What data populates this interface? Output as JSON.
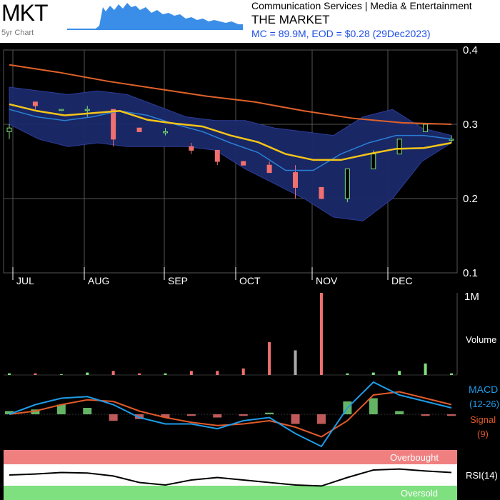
{
  "header": {
    "ticker": "MKT",
    "chart_period": "5yr Chart",
    "sector": "Communication Services | Media & Entertainment",
    "company": "THE MARKET",
    "market_cap_line": "MC = 89.9M, EOD = $0.28 (29Dec2023)"
  },
  "colors": {
    "background": "#000000",
    "band_fill": "#1b2a6b",
    "sma_short": "#f5c518",
    "sma_long": "#e0622a",
    "ma_mid": "#2a7fd4",
    "up": "#7ee07e",
    "down": "#f07070",
    "macd": "#1e9ce8",
    "signal": "#e05a2a",
    "overbought": "#f08080",
    "oversold": "#7ee07e"
  },
  "chart_data": {
    "type": "candlestick",
    "x_ticks": [
      "JUL",
      "AUG",
      "SEP",
      "OCT",
      "NOV",
      "DEC"
    ],
    "y_ticks": [
      "0.4",
      "0.3",
      "0.2",
      "0.1"
    ],
    "ylim": [
      0.1,
      0.4
    ],
    "candles": [
      {
        "o": 0.29,
        "h": 0.3,
        "l": 0.28,
        "c": 0.295
      },
      {
        "o": 0.33,
        "h": 0.33,
        "l": 0.32,
        "c": 0.325
      },
      {
        "o": 0.32,
        "h": 0.32,
        "l": 0.32,
        "c": 0.32
      },
      {
        "o": 0.32,
        "h": 0.325,
        "l": 0.31,
        "c": 0.32
      },
      {
        "o": 0.32,
        "h": 0.32,
        "l": 0.27,
        "c": 0.28
      },
      {
        "o": 0.295,
        "h": 0.295,
        "l": 0.29,
        "c": 0.29
      },
      {
        "o": 0.29,
        "h": 0.295,
        "l": 0.285,
        "c": 0.29
      },
      {
        "o": 0.27,
        "h": 0.275,
        "l": 0.26,
        "c": 0.265
      },
      {
        "o": 0.265,
        "h": 0.265,
        "l": 0.245,
        "c": 0.25
      },
      {
        "o": 0.25,
        "h": 0.25,
        "l": 0.245,
        "c": 0.245
      },
      {
        "o": 0.245,
        "h": 0.25,
        "l": 0.235,
        "c": 0.235
      },
      {
        "o": 0.235,
        "h": 0.245,
        "l": 0.2,
        "c": 0.215
      },
      {
        "o": 0.215,
        "h": 0.215,
        "l": 0.2,
        "c": 0.2
      },
      {
        "o": 0.2,
        "h": 0.24,
        "l": 0.195,
        "c": 0.24
      },
      {
        "o": 0.24,
        "h": 0.265,
        "l": 0.24,
        "c": 0.26
      },
      {
        "o": 0.26,
        "h": 0.28,
        "l": 0.26,
        "c": 0.28
      },
      {
        "o": 0.29,
        "h": 0.3,
        "l": 0.29,
        "c": 0.3
      },
      {
        "o": 0.28,
        "h": 0.285,
        "l": 0.275,
        "c": 0.28
      }
    ],
    "sma_short": [
      0.327,
      0.318,
      0.312,
      0.315,
      0.318,
      0.306,
      0.301,
      0.297,
      0.285,
      0.276,
      0.26,
      0.252,
      0.252,
      0.26,
      0.267,
      0.268,
      0.275
    ],
    "sma_long": [
      0.38,
      0.37,
      0.358,
      0.348,
      0.338,
      0.33,
      0.318,
      0.308,
      0.302,
      0.3
    ],
    "ma_mid": [
      0.32,
      0.31,
      0.305,
      0.31,
      0.318,
      0.312,
      0.3,
      0.29,
      0.275,
      0.262,
      0.238,
      0.238,
      0.26,
      0.275,
      0.285,
      0.285,
      0.28
    ],
    "band_upper": [
      0.35,
      0.345,
      0.34,
      0.345,
      0.34,
      0.325,
      0.31,
      0.305,
      0.305,
      0.295,
      0.29,
      0.285,
      0.31,
      0.32,
      0.295,
      0.285
    ],
    "band_lower": [
      0.3,
      0.28,
      0.27,
      0.275,
      0.27,
      0.27,
      0.27,
      0.265,
      0.24,
      0.22,
      0.2,
      0.175,
      0.17,
      0.2,
      0.25,
      0.275
    ],
    "volume_label": "Volume",
    "volume_tick": "1M",
    "volume": [
      0.02,
      0.02,
      0.01,
      0.03,
      0.05,
      0.02,
      0.02,
      0.05,
      0.05,
      0.08,
      0.4,
      0.3,
      1.0,
      0.02,
      0.03,
      0.05,
      0.14,
      0.02
    ],
    "macd_label": "MACD",
    "macd_params": "(12-26)",
    "signal_label": "Signal",
    "signal_params": "(9)",
    "macd": [
      0.0,
      0.3,
      0.5,
      0.55,
      0.3,
      -0.1,
      -0.3,
      -0.3,
      -0.45,
      -0.2,
      -0.1,
      -0.6,
      -1.0,
      0.2,
      1.0,
      0.6,
      0.4,
      0.2
    ],
    "signal": [
      0.0,
      0.1,
      0.3,
      0.45,
      0.4,
      0.1,
      -0.1,
      -0.25,
      -0.35,
      -0.3,
      -0.2,
      -0.4,
      -0.7,
      -0.2,
      0.6,
      0.7,
      0.5,
      0.3
    ],
    "histogram": [
      0.1,
      0.15,
      0.3,
      0.2,
      -0.2,
      -0.15,
      -0.1,
      -0.05,
      -0.1,
      -0.05,
      0.05,
      -0.3,
      -0.3,
      0.4,
      0.5,
      0.1,
      -0.05,
      -0.05
    ],
    "rsi_label": "RSI(14)",
    "overbought_label": "Overbought",
    "oversold_label": "Oversold",
    "rsi": [
      50,
      52,
      55,
      54,
      48,
      35,
      30,
      40,
      45,
      40,
      35,
      30,
      28,
      45,
      60,
      62,
      58,
      55
    ]
  }
}
